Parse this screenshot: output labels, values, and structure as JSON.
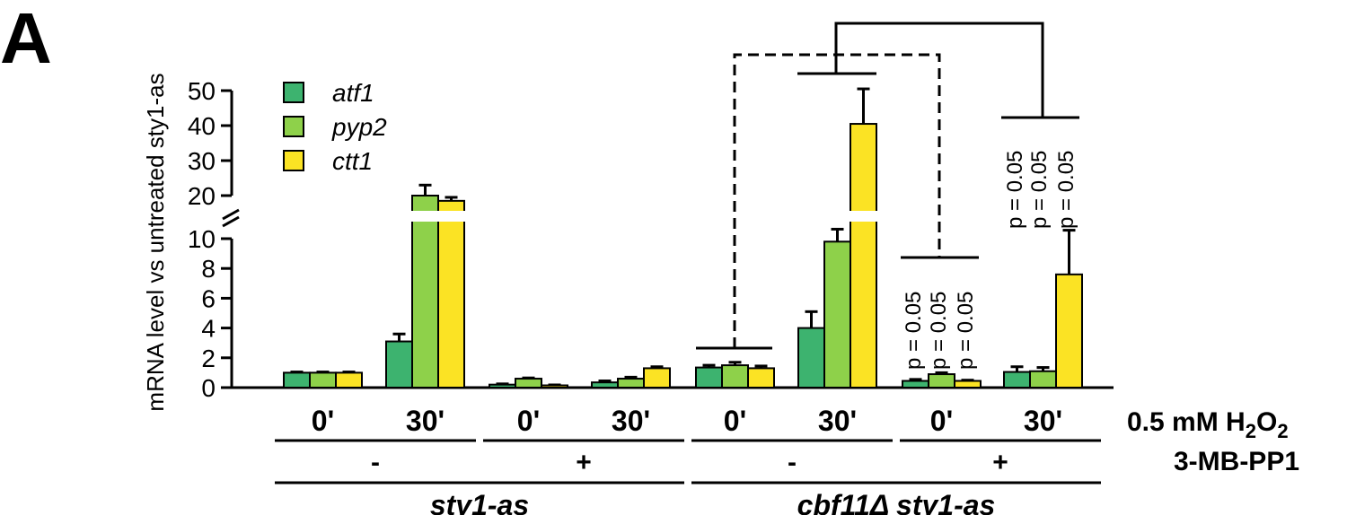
{
  "panel_label": "A",
  "chart_data": {
    "type": "bar",
    "ylabel": "mRNA level vs untreated sty1-as",
    "y_ticks_lower": [
      "0",
      "2",
      "4",
      "6",
      "8",
      "10"
    ],
    "y_ticks_upper": [
      "20",
      "30",
      "40",
      "50"
    ],
    "y_axis_break": [
      10,
      20
    ],
    "categories": [
      "0'",
      "30'",
      "0'",
      "30'",
      "0'",
      "30'",
      "0'",
      "30'"
    ],
    "series": [
      {
        "name": "atf1",
        "color": "#3db36f",
        "values": [
          1.0,
          3.1,
          0.2,
          0.35,
          1.35,
          4.0,
          0.45,
          1.05
        ],
        "errors": [
          0.05,
          0.5,
          0.05,
          0.1,
          0.15,
          1.1,
          0.1,
          0.35
        ]
      },
      {
        "name": "pyp2",
        "color": "#8ed14a",
        "values": [
          1.0,
          20.0,
          0.6,
          0.6,
          1.5,
          9.8,
          0.9,
          1.1
        ],
        "errors": [
          0.05,
          3.0,
          0.05,
          0.1,
          0.2,
          0.6,
          0.1,
          0.25
        ]
      },
      {
        "name": "ctt1",
        "color": "#fbe324",
        "values": [
          1.0,
          18.5,
          0.15,
          1.3,
          1.3,
          40.5,
          0.45,
          7.6
        ],
        "errors": [
          0.05,
          1.0,
          0.03,
          0.1,
          0.15,
          10.0,
          0.05,
          2.5
        ]
      }
    ],
    "condition_rows": [
      {
        "label": "0.5 mM H2O2",
        "label_main": "0.5 mM H",
        "label_sub": "2",
        "label_o": "O",
        "label_sub2": "2"
      },
      {
        "label": "3-MB-PP1",
        "groups": [
          "-",
          "+",
          "-",
          "+"
        ]
      }
    ],
    "strains": [
      "sty1-as",
      "cbf11Δ sty1-as"
    ],
    "annotations": [
      {
        "text": "p = 0.05"
      },
      {
        "text": "p = 0.05"
      },
      {
        "text": "p = 0.05"
      },
      {
        "text": "p = 0.05"
      },
      {
        "text": "p = 0.05"
      },
      {
        "text": "p = 0.05"
      }
    ]
  }
}
